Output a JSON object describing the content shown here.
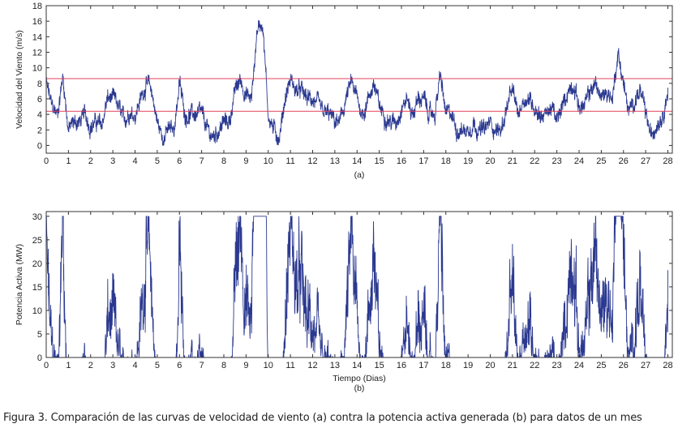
{
  "caption": "Figura 3. Comparación de las curvas de velocidad de viento (a) contra la potencia activa generada (b) para datos de un mes",
  "chart_data": [
    {
      "type": "line",
      "panel": "(a)",
      "ylabel": "Velocidad del Viento (m/s)",
      "xlabel": "",
      "sublabel": "(a)",
      "xlim": [
        0,
        28.2
      ],
      "ylim": [
        -1,
        18
      ],
      "xticks": [
        0,
        1,
        2,
        3,
        4,
        5,
        6,
        7,
        8,
        9,
        10,
        11,
        12,
        13,
        14,
        15,
        16,
        17,
        18,
        19,
        20,
        21,
        22,
        23,
        24,
        25,
        26,
        27,
        28
      ],
      "yticks": [
        0,
        2,
        4,
        6,
        8,
        10,
        12,
        14,
        16,
        18
      ],
      "series_color": "#2b3990",
      "reference_lines": [
        {
          "y": 8.6,
          "color": "#e0405a"
        },
        {
          "y": 4.4,
          "color": "#e0405a"
        }
      ],
      "x_step": 0.25,
      "series": [
        {
          "name": "Velocidad del viento",
          "values": [
            8,
            5,
            4,
            9,
            2,
            3,
            3,
            4,
            2.5,
            3,
            2.5,
            6,
            6,
            5,
            3,
            4.5,
            4,
            6,
            8,
            7,
            3,
            1,
            2,
            2,
            8,
            4,
            4,
            4,
            4,
            2,
            1,
            2,
            3,
            3,
            7,
            8.5,
            6.5,
            6,
            15,
            16,
            4,
            2,
            1,
            6,
            8.5,
            7,
            7,
            6,
            6,
            5,
            4,
            4,
            3,
            3,
            6,
            8,
            6,
            4,
            6,
            8,
            5,
            4,
            3,
            3,
            5,
            6,
            4,
            6,
            6,
            4,
            4,
            9,
            4,
            4,
            2,
            2,
            2,
            3,
            2,
            2,
            3,
            2,
            2,
            5,
            7,
            4,
            6,
            6,
            5,
            4,
            4,
            5,
            3,
            5,
            7,
            8,
            5,
            5,
            7,
            8,
            6,
            7,
            6,
            12,
            8,
            4,
            6,
            7,
            4,
            1,
            3,
            4,
            7
          ]
        }
      ]
    },
    {
      "type": "line",
      "panel": "(b)",
      "ylabel": "Potencia Activa (MW)",
      "xlabel": "Tiempo (Dias)",
      "sublabel": "(b)",
      "xlim": [
        0,
        28.2
      ],
      "ylim": [
        0,
        31
      ],
      "xticks": [
        0,
        1,
        2,
        3,
        4,
        5,
        6,
        7,
        8,
        9,
        10,
        11,
        12,
        13,
        14,
        15,
        16,
        17,
        18,
        19,
        20,
        21,
        22,
        23,
        24,
        25,
        26,
        27,
        28
      ],
      "yticks": [
        0,
        5,
        10,
        15,
        20,
        25,
        30
      ],
      "series_color": "#2b3990",
      "power_curve": {
        "cut_in": 4.4,
        "rated_speed": 8.6,
        "rated_power": 30
      },
      "series": [
        {
          "name": "Potencia activa",
          "derived_from": "Velocidad del viento"
        }
      ]
    }
  ]
}
